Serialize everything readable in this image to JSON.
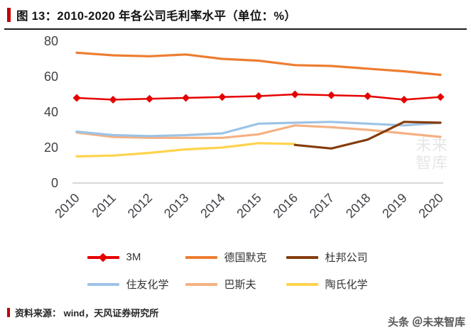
{
  "chart_data": {
    "type": "line",
    "title": "图 13：2010-2020 年各公司毛利率水平（单位：%）",
    "unit": "%",
    "x": [
      "2010",
      "2011",
      "2012",
      "2013",
      "2014",
      "2015",
      "2016",
      "2017",
      "2018",
      "2019",
      "2020"
    ],
    "xlabel": "",
    "ylabel": "",
    "ylim": [
      0,
      80
    ],
    "yticks": [
      0,
      20,
      40,
      60,
      80
    ],
    "grid": false,
    "legend_position": "bottom",
    "series": [
      {
        "name": "3M",
        "color": "#e60000",
        "marker": "diamond",
        "values": [
          48,
          47,
          47.5,
          48,
          48.5,
          49,
          50,
          49.5,
          49,
          47,
          48.5
        ]
      },
      {
        "name": "德国默克",
        "color": "#ed7d31",
        "values": [
          73.5,
          72,
          71.5,
          72.5,
          70,
          69,
          66.5,
          66,
          64.5,
          63,
          61
        ]
      },
      {
        "name": "杜邦公司",
        "color": "#843c0c",
        "values": [
          null,
          null,
          null,
          null,
          null,
          null,
          21.5,
          19.5,
          24.5,
          34.5,
          34
        ]
      },
      {
        "name": "住友化学",
        "color": "#9dc3e6",
        "values": [
          29,
          27,
          26.5,
          27,
          28,
          33.5,
          34,
          34.5,
          33.5,
          32.5,
          34
        ]
      },
      {
        "name": "巴斯夫",
        "color": "#f4b183",
        "values": [
          28.5,
          26,
          25.5,
          25.5,
          25.5,
          27.5,
          32.5,
          31.5,
          30,
          28,
          26
        ]
      },
      {
        "name": "陶氏化学",
        "color": "#ffd34d",
        "values": [
          15,
          15.5,
          17,
          19,
          20,
          22.5,
          22,
          null,
          null,
          null,
          null
        ]
      }
    ]
  },
  "footer": {
    "source": "资料来源： wind，天风证券研究所"
  },
  "watermarks": {
    "bottom_right": "头条 ＠未来智库",
    "chart_faint": "未来智库"
  }
}
